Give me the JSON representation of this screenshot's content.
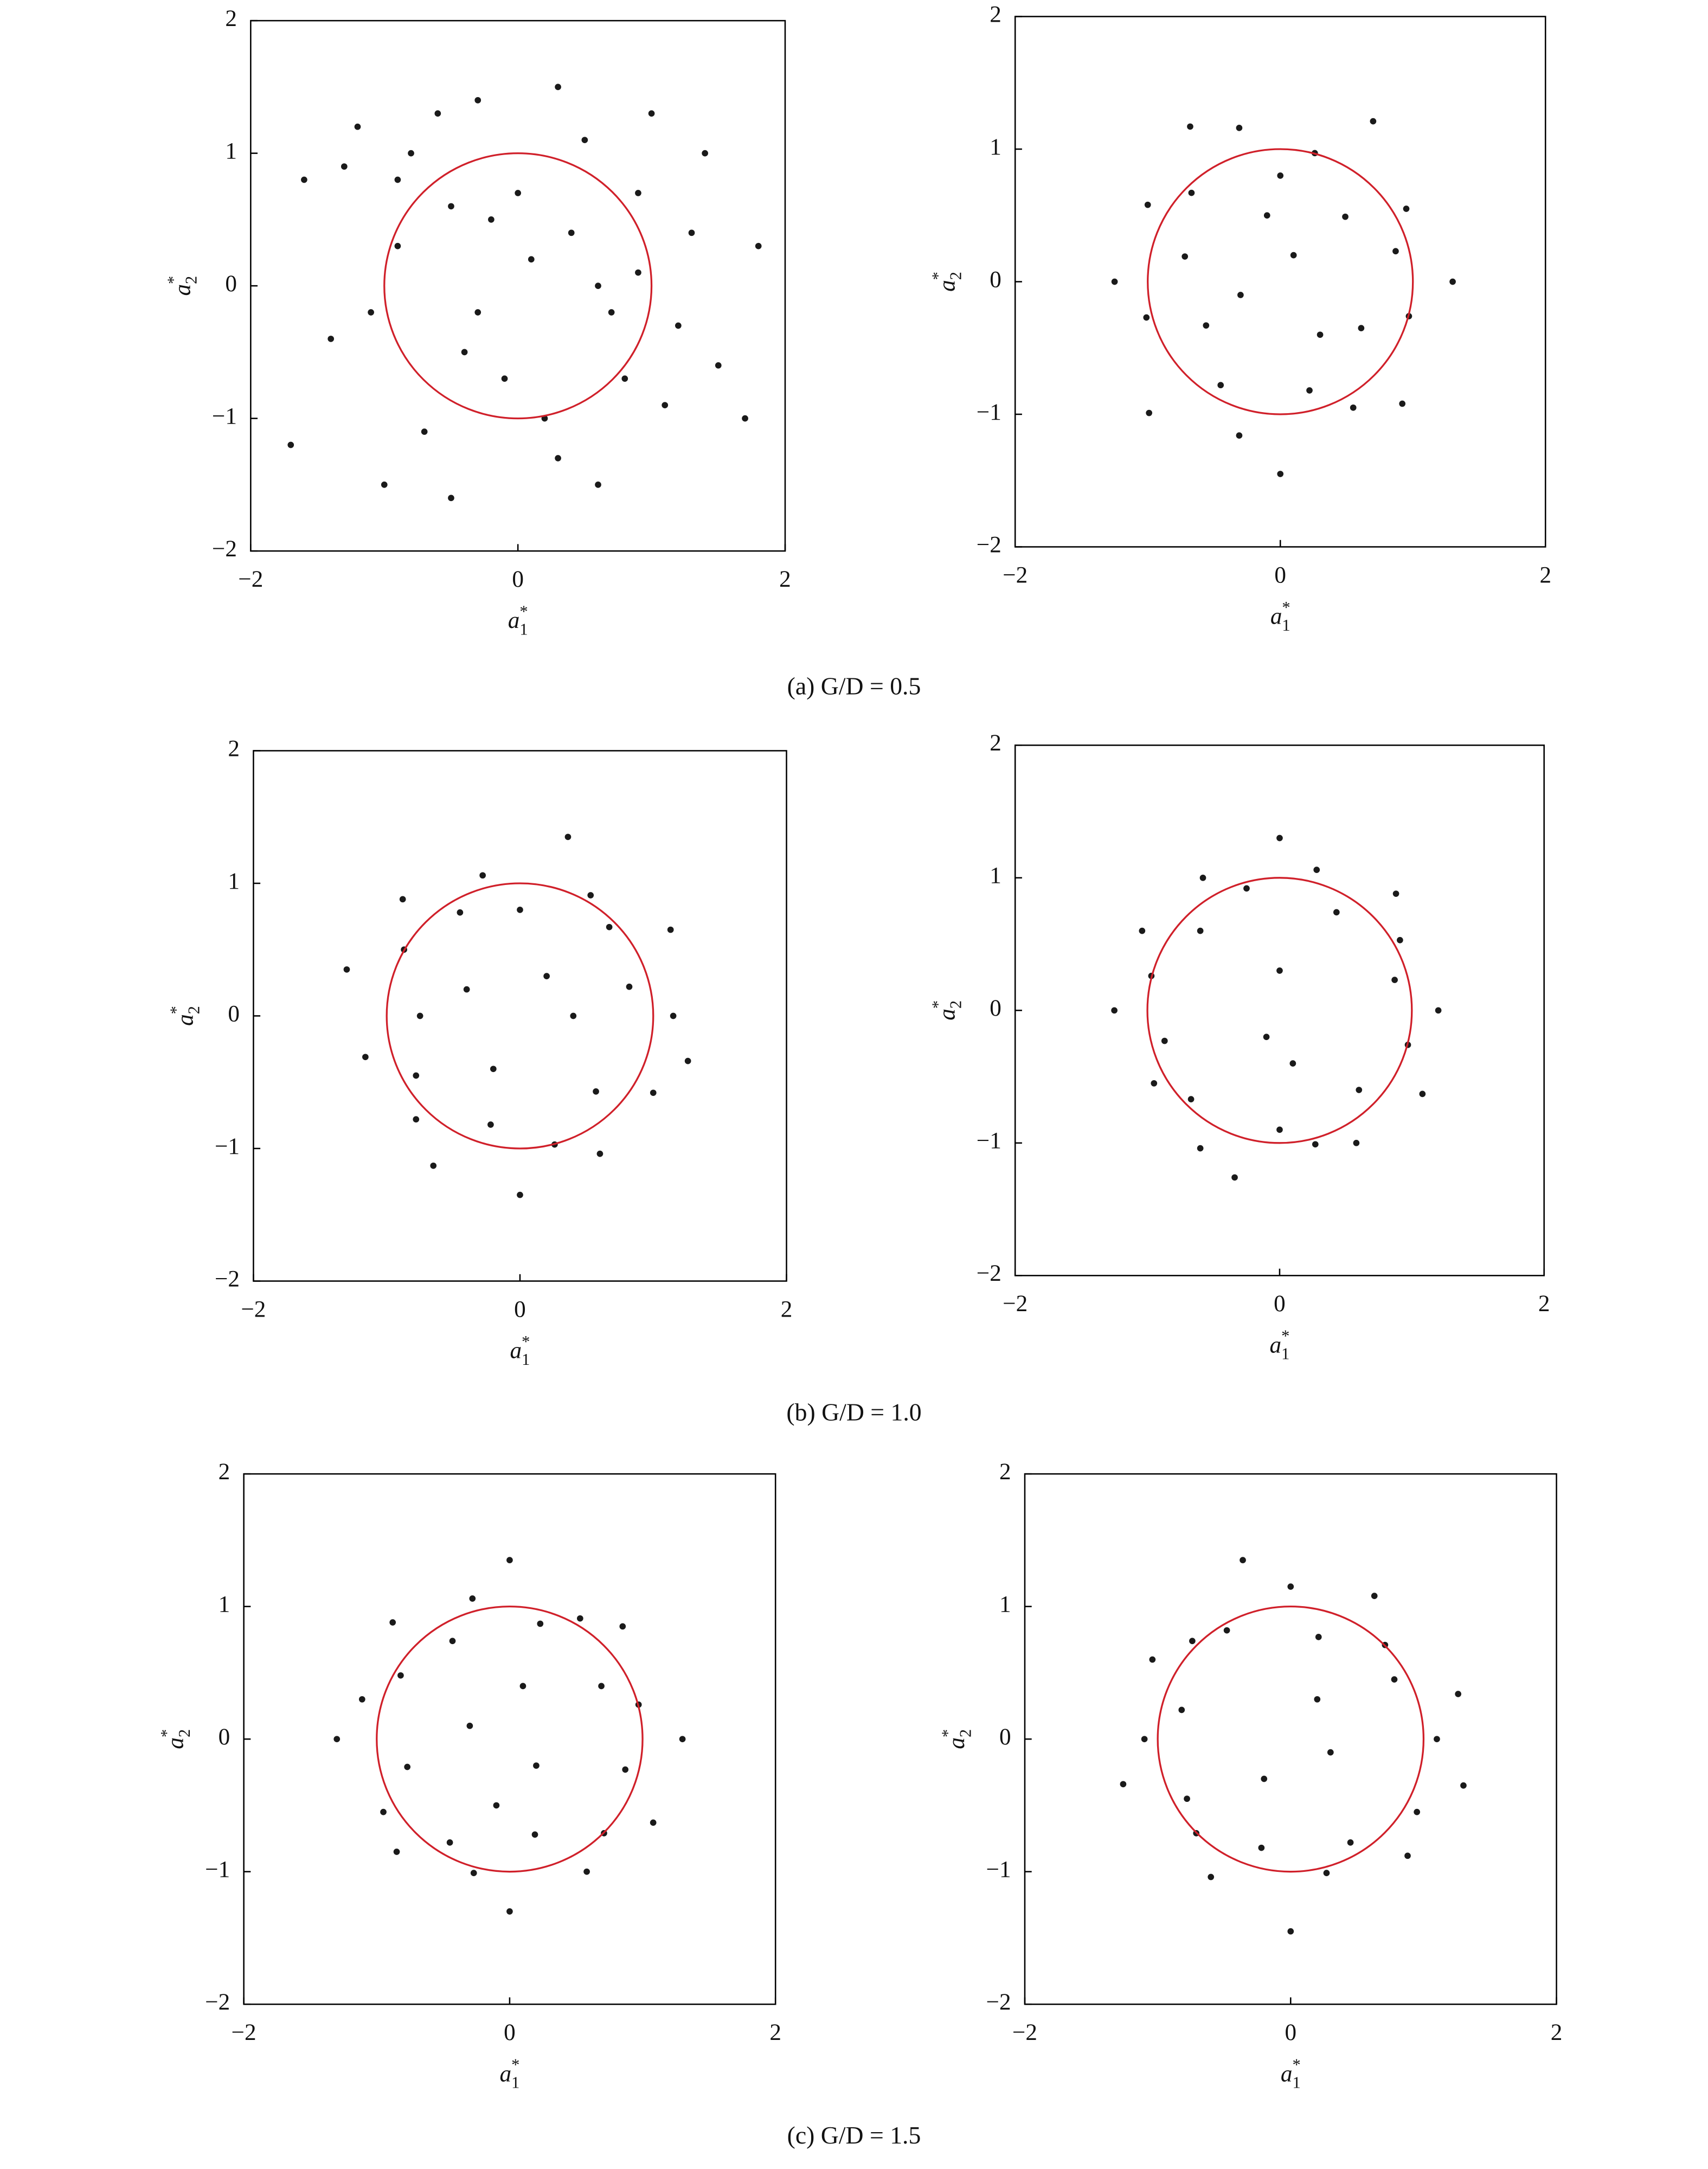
{
  "chart_data": [
    {
      "type": "scatter",
      "caption": "(a) G/D = 0.5",
      "x": [
        -1.6,
        -1.4,
        -1.2,
        -0.9,
        -0.7,
        -0.5,
        -0.3,
        -0.1,
        0.1,
        0.3,
        0.5,
        0.7,
        0.9,
        1.1,
        1.3,
        1.5,
        1.8,
        -1.7,
        -1.3,
        -1.0,
        -0.6,
        -0.2,
        0.2,
        0.6,
        1.0,
        1.4,
        1.7,
        -1.1,
        -0.8,
        -0.4,
        0.0,
        0.4,
        0.8,
        1.2,
        -0.5,
        0.3,
        -0.9,
        0.6,
        -0.3,
        0.9
      ],
      "y": [
        0.8,
        -0.4,
        1.2,
        0.3,
        -1.1,
        0.6,
        1.4,
        -0.7,
        0.2,
        -1.3,
        1.1,
        -0.2,
        0.7,
        -0.9,
        0.4,
        -0.6,
        0.3,
        -1.2,
        0.9,
        -1.5,
        1.3,
        0.5,
        -1.0,
        0.0,
        1.3,
        1.0,
        -1.0,
        -0.2,
        1.0,
        -0.5,
        0.7,
        0.4,
        -0.7,
        -0.3,
        -1.6,
        1.5,
        0.8,
        -1.5,
        -0.2,
        0.1
      ],
      "color": "#1a1a1a",
      "circle": {
        "center": [
          0,
          0
        ],
        "radius": 1,
        "color": "#d0202a"
      },
      "xlim": [
        -2,
        2
      ],
      "ylim": [
        -2,
        2
      ],
      "xticks": [
        {
          "value": -2,
          "label": "−2"
        },
        0,
        2
      ],
      "yticks": [
        {
          "value": -2,
          "label": "−2"
        },
        {
          "value": -1,
          "label": "−1"
        },
        0,
        1,
        2
      ],
      "xlabel": {
        "base": "a",
        "sup": "*",
        "sub": "1"
      },
      "ylabel": {
        "base": "a",
        "sup": "*",
        "sub": "2"
      }
    },
    {
      "type": "scatter",
      "x": [
        1.3,
        0.87,
        0.95,
        0.49,
        0.7,
        0.26,
        0,
        -0.31,
        -0.68,
        -0.67,
        -1.0,
        -0.72,
        -1.25,
        -1.01,
        -0.56,
        -0.99,
        -0.45,
        -0.31,
        0,
        0.22,
        0.55,
        0.92,
        0.61,
        0.97,
        0.1,
        -0.3,
        0.3,
        -0.1
      ],
      "y": [
        0,
        0.23,
        0.55,
        0.49,
        1.21,
        0.97,
        0.8,
        1.16,
        1.17,
        0.67,
        0.58,
        0.19,
        0,
        -0.27,
        -0.33,
        -0.99,
        -0.78,
        -1.16,
        -1.45,
        -0.82,
        -0.95,
        -0.92,
        -0.35,
        -0.26,
        0.2,
        -0.1,
        -0.4,
        0.5
      ],
      "color": "#1a1a1a",
      "circle": {
        "center": [
          0,
          0
        ],
        "radius": 1,
        "color": "#d0202a"
      },
      "xlim": [
        -2,
        2
      ],
      "ylim": [
        -2,
        2
      ],
      "xticks": [
        {
          "value": -2,
          "label": "−2"
        },
        0,
        2
      ],
      "yticks": [
        {
          "value": -2,
          "label": "−2"
        },
        {
          "value": -1,
          "label": "−1"
        },
        0,
        1,
        2
      ],
      "xlabel": {
        "base": "a",
        "sup": "*",
        "sub": "1"
      },
      "ylabel": {
        "base": "a",
        "sup": "*",
        "sub": "2"
      }
    },
    {
      "type": "scatter",
      "caption": "(b) G/D = 1.0",
      "x": [
        1.15,
        0.82,
        1.13,
        0.67,
        0.53,
        0.36,
        0,
        -0.28,
        -0.45,
        -0.88,
        -0.87,
        -1.3,
        -0.75,
        -1.16,
        -0.78,
        -0.78,
        -0.65,
        -0.22,
        0,
        0.26,
        0.6,
        0.57,
        1.0,
        1.26,
        0.2,
        -0.2,
        0.4,
        -0.4
      ],
      "y": [
        0,
        0.22,
        0.65,
        0.67,
        0.91,
        1.35,
        0.8,
        1.06,
        0.78,
        0.88,
        0.5,
        0.35,
        0,
        -0.31,
        -0.45,
        -0.78,
        -1.13,
        -0.82,
        -1.35,
        -0.97,
        -1.04,
        -0.57,
        -0.58,
        -0.34,
        0.3,
        -0.4,
        0.0,
        0.2
      ],
      "color": "#1a1a1a",
      "circle": {
        "center": [
          0,
          0
        ],
        "radius": 1,
        "color": "#d0202a"
      },
      "xlim": [
        -2,
        2
      ],
      "ylim": [
        -2,
        2
      ],
      "xticks": [
        {
          "value": -2,
          "label": "−2"
        },
        0,
        2
      ],
      "yticks": [
        {
          "value": -2,
          "label": "−2"
        },
        {
          "value": -1,
          "label": "−1"
        },
        0,
        1,
        2
      ],
      "xlabel": {
        "base": "a",
        "sup": "*",
        "sub": "1"
      },
      "ylabel": {
        "base": "a",
        "sup": "*",
        "sub": "2"
      }
    },
    {
      "type": "scatter",
      "x": [
        1.2,
        0.87,
        0.91,
        0.88,
        0.43,
        0.28,
        0,
        -0.25,
        -0.58,
        -0.6,
        -1.04,
        -0.97,
        -1.25,
        -0.87,
        -0.95,
        -0.67,
        -0.6,
        -0.34,
        0,
        0.27,
        0.58,
        0.6,
        1.08,
        0.97,
        0.0,
        -0.1,
        0.1
      ],
      "y": [
        0,
        0.23,
        0.53,
        0.88,
        0.74,
        1.06,
        1.3,
        0.92,
        1.0,
        0.6,
        0.6,
        0.26,
        0,
        -0.23,
        -0.55,
        -0.67,
        -1.04,
        -1.26,
        -0.9,
        -1.01,
        -1.0,
        -0.6,
        -0.63,
        -0.26,
        0.3,
        -0.2,
        -0.4
      ],
      "color": "#1a1a1a",
      "circle": {
        "center": [
          0,
          0
        ],
        "radius": 1,
        "color": "#d0202a"
      },
      "xlim": [
        -2,
        2
      ],
      "ylim": [
        -2,
        2
      ],
      "xticks": [
        {
          "value": -2,
          "label": "−2"
        },
        0,
        2
      ],
      "yticks": [
        {
          "value": -2,
          "label": "−2"
        },
        {
          "value": -1,
          "label": "−1"
        },
        0,
        1,
        2
      ],
      "xlabel": {
        "base": "a",
        "sup": "*",
        "sub": "1"
      },
      "ylabel": {
        "base": "a",
        "sup": "*",
        "sub": "2"
      }
    },
    {
      "type": "scatter",
      "caption": "(c) G/D = 1.5",
      "x": [
        1.3,
        0.97,
        0.69,
        0.85,
        0.53,
        0.23,
        0,
        -0.28,
        -0.43,
        -0.88,
        -0.82,
        -1.11,
        -1.3,
        -0.77,
        -0.95,
        -0.85,
        -0.45,
        -0.27,
        0,
        0.19,
        0.58,
        0.71,
        1.08,
        0.87,
        0.1,
        -0.3,
        0.2,
        -0.1
      ],
      "y": [
        0,
        0.26,
        0.4,
        0.85,
        0.91,
        0.87,
        1.35,
        1.06,
        0.74,
        0.88,
        0.48,
        0.3,
        0,
        -0.21,
        -0.55,
        -0.85,
        -0.78,
        -1.01,
        -1.3,
        -0.72,
        -1.0,
        -0.71,
        -0.63,
        -0.23,
        0.4,
        0.1,
        -0.2,
        -0.5
      ],
      "color": "#1a1a1a",
      "circle": {
        "center": [
          0,
          0
        ],
        "radius": 1,
        "color": "#d0202a"
      },
      "xlim": [
        -2,
        2
      ],
      "ylim": [
        -2,
        2
      ],
      "xticks": [
        {
          "value": -2,
          "label": "−2"
        },
        0,
        2
      ],
      "yticks": [
        {
          "value": -2,
          "label": "−2"
        },
        {
          "value": -1,
          "label": "−1"
        },
        0,
        1,
        2
      ],
      "xlabel": {
        "base": "a",
        "sup": "*",
        "sub": "1"
      },
      "ylabel": {
        "base": "a",
        "sup": "*",
        "sub": "2"
      }
    },
    {
      "type": "scatter",
      "x": [
        1.1,
        1.26,
        0.78,
        0.71,
        0.63,
        0.21,
        0,
        -0.36,
        -0.48,
        -0.74,
        -1.04,
        -0.82,
        -1.1,
        -1.26,
        -0.78,
        -0.71,
        -0.6,
        -0.22,
        0,
        0.27,
        0.45,
        0.88,
        0.95,
        1.3,
        0.2,
        -0.2,
        0.3
      ],
      "y": [
        0,
        0.34,
        0.45,
        0.71,
        1.08,
        0.77,
        1.15,
        1.35,
        0.82,
        0.74,
        0.6,
        0.22,
        0,
        -0.34,
        -0.45,
        -0.71,
        -1.04,
        -0.82,
        -1.45,
        -1.01,
        -0.78,
        -0.88,
        -0.55,
        -0.35,
        0.3,
        -0.3,
        -0.1
      ],
      "color": "#1a1a1a",
      "circle": {
        "center": [
          0,
          0
        ],
        "radius": 1,
        "color": "#d0202a"
      },
      "xlim": [
        -2,
        2
      ],
      "ylim": [
        -2,
        2
      ],
      "xticks": [
        {
          "value": -2,
          "label": "−2"
        },
        0,
        2
      ],
      "yticks": [
        {
          "value": -2,
          "label": "−2"
        },
        {
          "value": -1,
          "label": "−1"
        },
        0,
        1,
        2
      ],
      "xlabel": {
        "base": "a",
        "sup": "*",
        "sub": "1"
      },
      "ylabel": {
        "base": "a",
        "sup": "*",
        "sub": "2"
      }
    }
  ]
}
